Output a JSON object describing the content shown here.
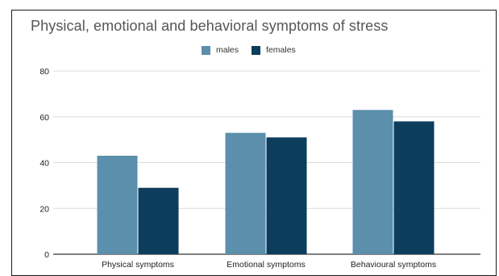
{
  "chart_data": {
    "type": "bar",
    "title": "Physical, emotional and behavioral symptoms of stress",
    "categories": [
      "Physical symptoms",
      "Emotional symptoms",
      "Behavioural symptoms"
    ],
    "series": [
      {
        "name": "males",
        "values": [
          43,
          53,
          63
        ],
        "color": "#5b8fac"
      },
      {
        "name": "females",
        "values": [
          29,
          51,
          58
        ],
        "color": "#0d3d5c"
      }
    ],
    "yticks": [
      0,
      20,
      40,
      60,
      80
    ],
    "ylim": [
      0,
      80
    ],
    "grid": true,
    "legend_position": "top-center",
    "xlabel": "",
    "ylabel": ""
  }
}
